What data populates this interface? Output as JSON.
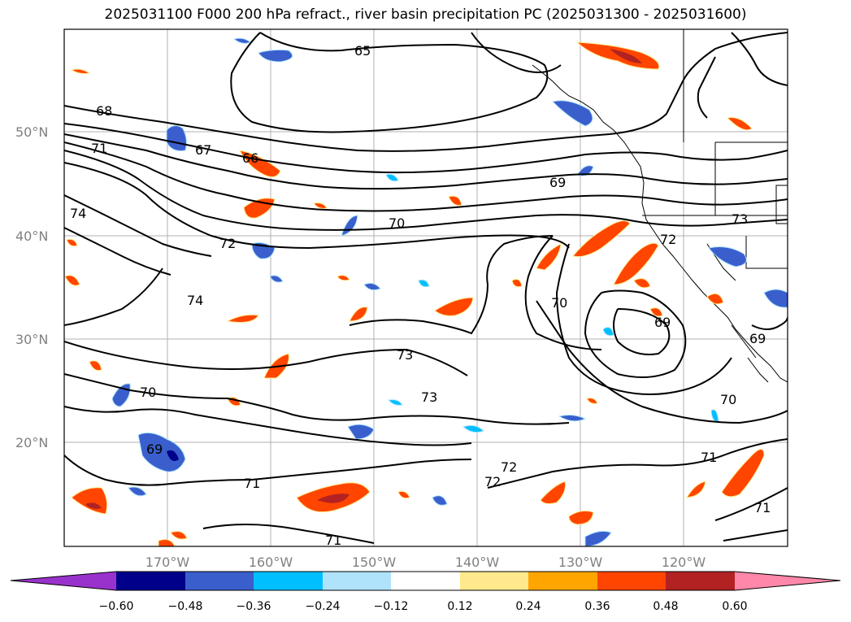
{
  "title": "2025031100 F000 200 hPa refract., river basin precipitation PC (2025031300 - 2025031600)",
  "map": {
    "lat_labels": [
      "50°N",
      "40°N",
      "30°N",
      "20°N"
    ],
    "lon_labels": [
      "170°W",
      "160°W",
      "150°W",
      "140°W",
      "130°W",
      "120°W"
    ],
    "contour_labels": [
      "65",
      "68",
      "67",
      "66",
      "71",
      "69",
      "74",
      "70",
      "72",
      "73",
      "72",
      "74",
      "70",
      "69",
      "73",
      "69",
      "73",
      "70",
      "70",
      "69",
      "71",
      "72",
      "72",
      "71",
      "71",
      "71"
    ],
    "colors": {
      "ocean": "#ffffff",
      "contour": "#000000",
      "grid": "#b0b0b0",
      "pos_light": "#ffe98c",
      "pos_mid": "#ffa500",
      "pos_strong": "#ff4500",
      "pos_max": "#b22222",
      "neg_light": "#aee3fb",
      "neg_mid": "#00bfff",
      "neg_strong": "#3a5fcd",
      "neg_max": "#00008b"
    }
  },
  "colorbar": {
    "colors": [
      "#9932cc",
      "#00008b",
      "#3a5fcd",
      "#00bfff",
      "#aee3fb",
      "#ffffff",
      "#ffe98c",
      "#ffa500",
      "#ff4500",
      "#b22222",
      "#ff88aa"
    ],
    "ticks": [
      "−0.60",
      "−0.48",
      "−0.36",
      "−0.24",
      "−0.12",
      "0.12",
      "0.24",
      "0.36",
      "0.48",
      "0.60"
    ]
  }
}
